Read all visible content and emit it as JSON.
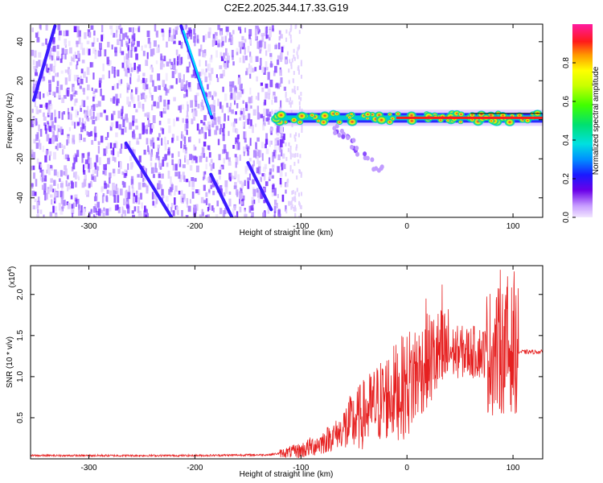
{
  "figure_title": "C2E2.2025.344.17.33.G19",
  "chart_data": [
    {
      "type": "heatmap",
      "title": "C2E2.2025.344.17.33.G19",
      "xlabel": "Height of straight line (km)",
      "ylabel": "Frequency (Hz)",
      "xlim": [
        -355,
        128
      ],
      "ylim": [
        -50,
        49
      ],
      "xticks": [
        -300,
        -200,
        -100,
        0,
        100
      ],
      "xtick_labels": [
        "-300",
        "-200",
        "-100",
        "0",
        "100"
      ],
      "yticks": [
        -40,
        -20,
        0,
        20,
        40
      ],
      "ytick_labels": [
        "-40",
        "-20",
        "0",
        "20",
        "40"
      ],
      "colorbar": {
        "label": "Normalized spectral amplitude",
        "range": [
          0,
          1
        ],
        "ticks": [
          0.0,
          0.2,
          0.4,
          0.6,
          0.8
        ],
        "tick_labels": [
          "0.0",
          "0.2",
          "0.4",
          "0.6",
          "0.8"
        ]
      },
      "features": {
        "noise_region_km": [
          -355,
          -115
        ],
        "carrier_band": {
          "x_range_km": [
            -125,
            128
          ],
          "frequency_hz": 1
        },
        "streaks": [
          {
            "x0": -213,
            "y0": 48,
            "x1": -184,
            "y1": 1
          },
          {
            "x0": -352,
            "y0": 10,
            "x1": -332,
            "y1": 48
          },
          {
            "x0": -265,
            "y0": -12,
            "x1": -222,
            "y1": -50
          },
          {
            "x0": -185,
            "y0": -28,
            "x1": -165,
            "y1": -50
          },
          {
            "x0": -150,
            "y0": -22,
            "x1": -128,
            "y1": -46
          }
        ],
        "tail": {
          "x0": -70,
          "y0": -3,
          "x1": -25,
          "y1": -26
        }
      }
    },
    {
      "type": "line",
      "xlabel": "Height of straight line (km)",
      "ylabel": "SNR (10 * v/v)",
      "y_multiplier": "(x10⁴)",
      "y_multiplier_base": "(x10",
      "y_multiplier_exp": "4",
      "y_multiplier_close": ")",
      "xlim": [
        -355,
        128
      ],
      "ylim": [
        0,
        2.35
      ],
      "xticks": [
        -300,
        -200,
        -100,
        0,
        100
      ],
      "xtick_labels": [
        "-300",
        "-200",
        "-100",
        "0",
        "100"
      ],
      "yticks": [
        0.5,
        1.0,
        1.5,
        2.0
      ],
      "ytick_labels": [
        "0.5",
        "1.0",
        "1.5",
        "2.0"
      ],
      "series": [
        {
          "name": "SNR",
          "color": "#e62020",
          "x": [
            -355,
            -300,
            -200,
            -130,
            -100,
            -80,
            -60,
            -40,
            -20,
            0,
            20,
            40,
            60,
            80,
            100,
            105,
            128
          ],
          "values": [
            0.04,
            0.04,
            0.04,
            0.05,
            0.1,
            0.2,
            0.35,
            0.55,
            0.75,
            0.9,
            1.2,
            1.3,
            1.3,
            1.3,
            1.35,
            1.3,
            1.3
          ],
          "peaks": [
            {
              "x": 18,
              "y": 1.95
            },
            {
              "x": 33,
              "y": 2.12
            },
            {
              "x": 88,
              "y": 2.3
            },
            {
              "x": 95,
              "y": 2.22
            },
            {
              "x": 101,
              "y": 2.28
            }
          ]
        }
      ]
    }
  ]
}
